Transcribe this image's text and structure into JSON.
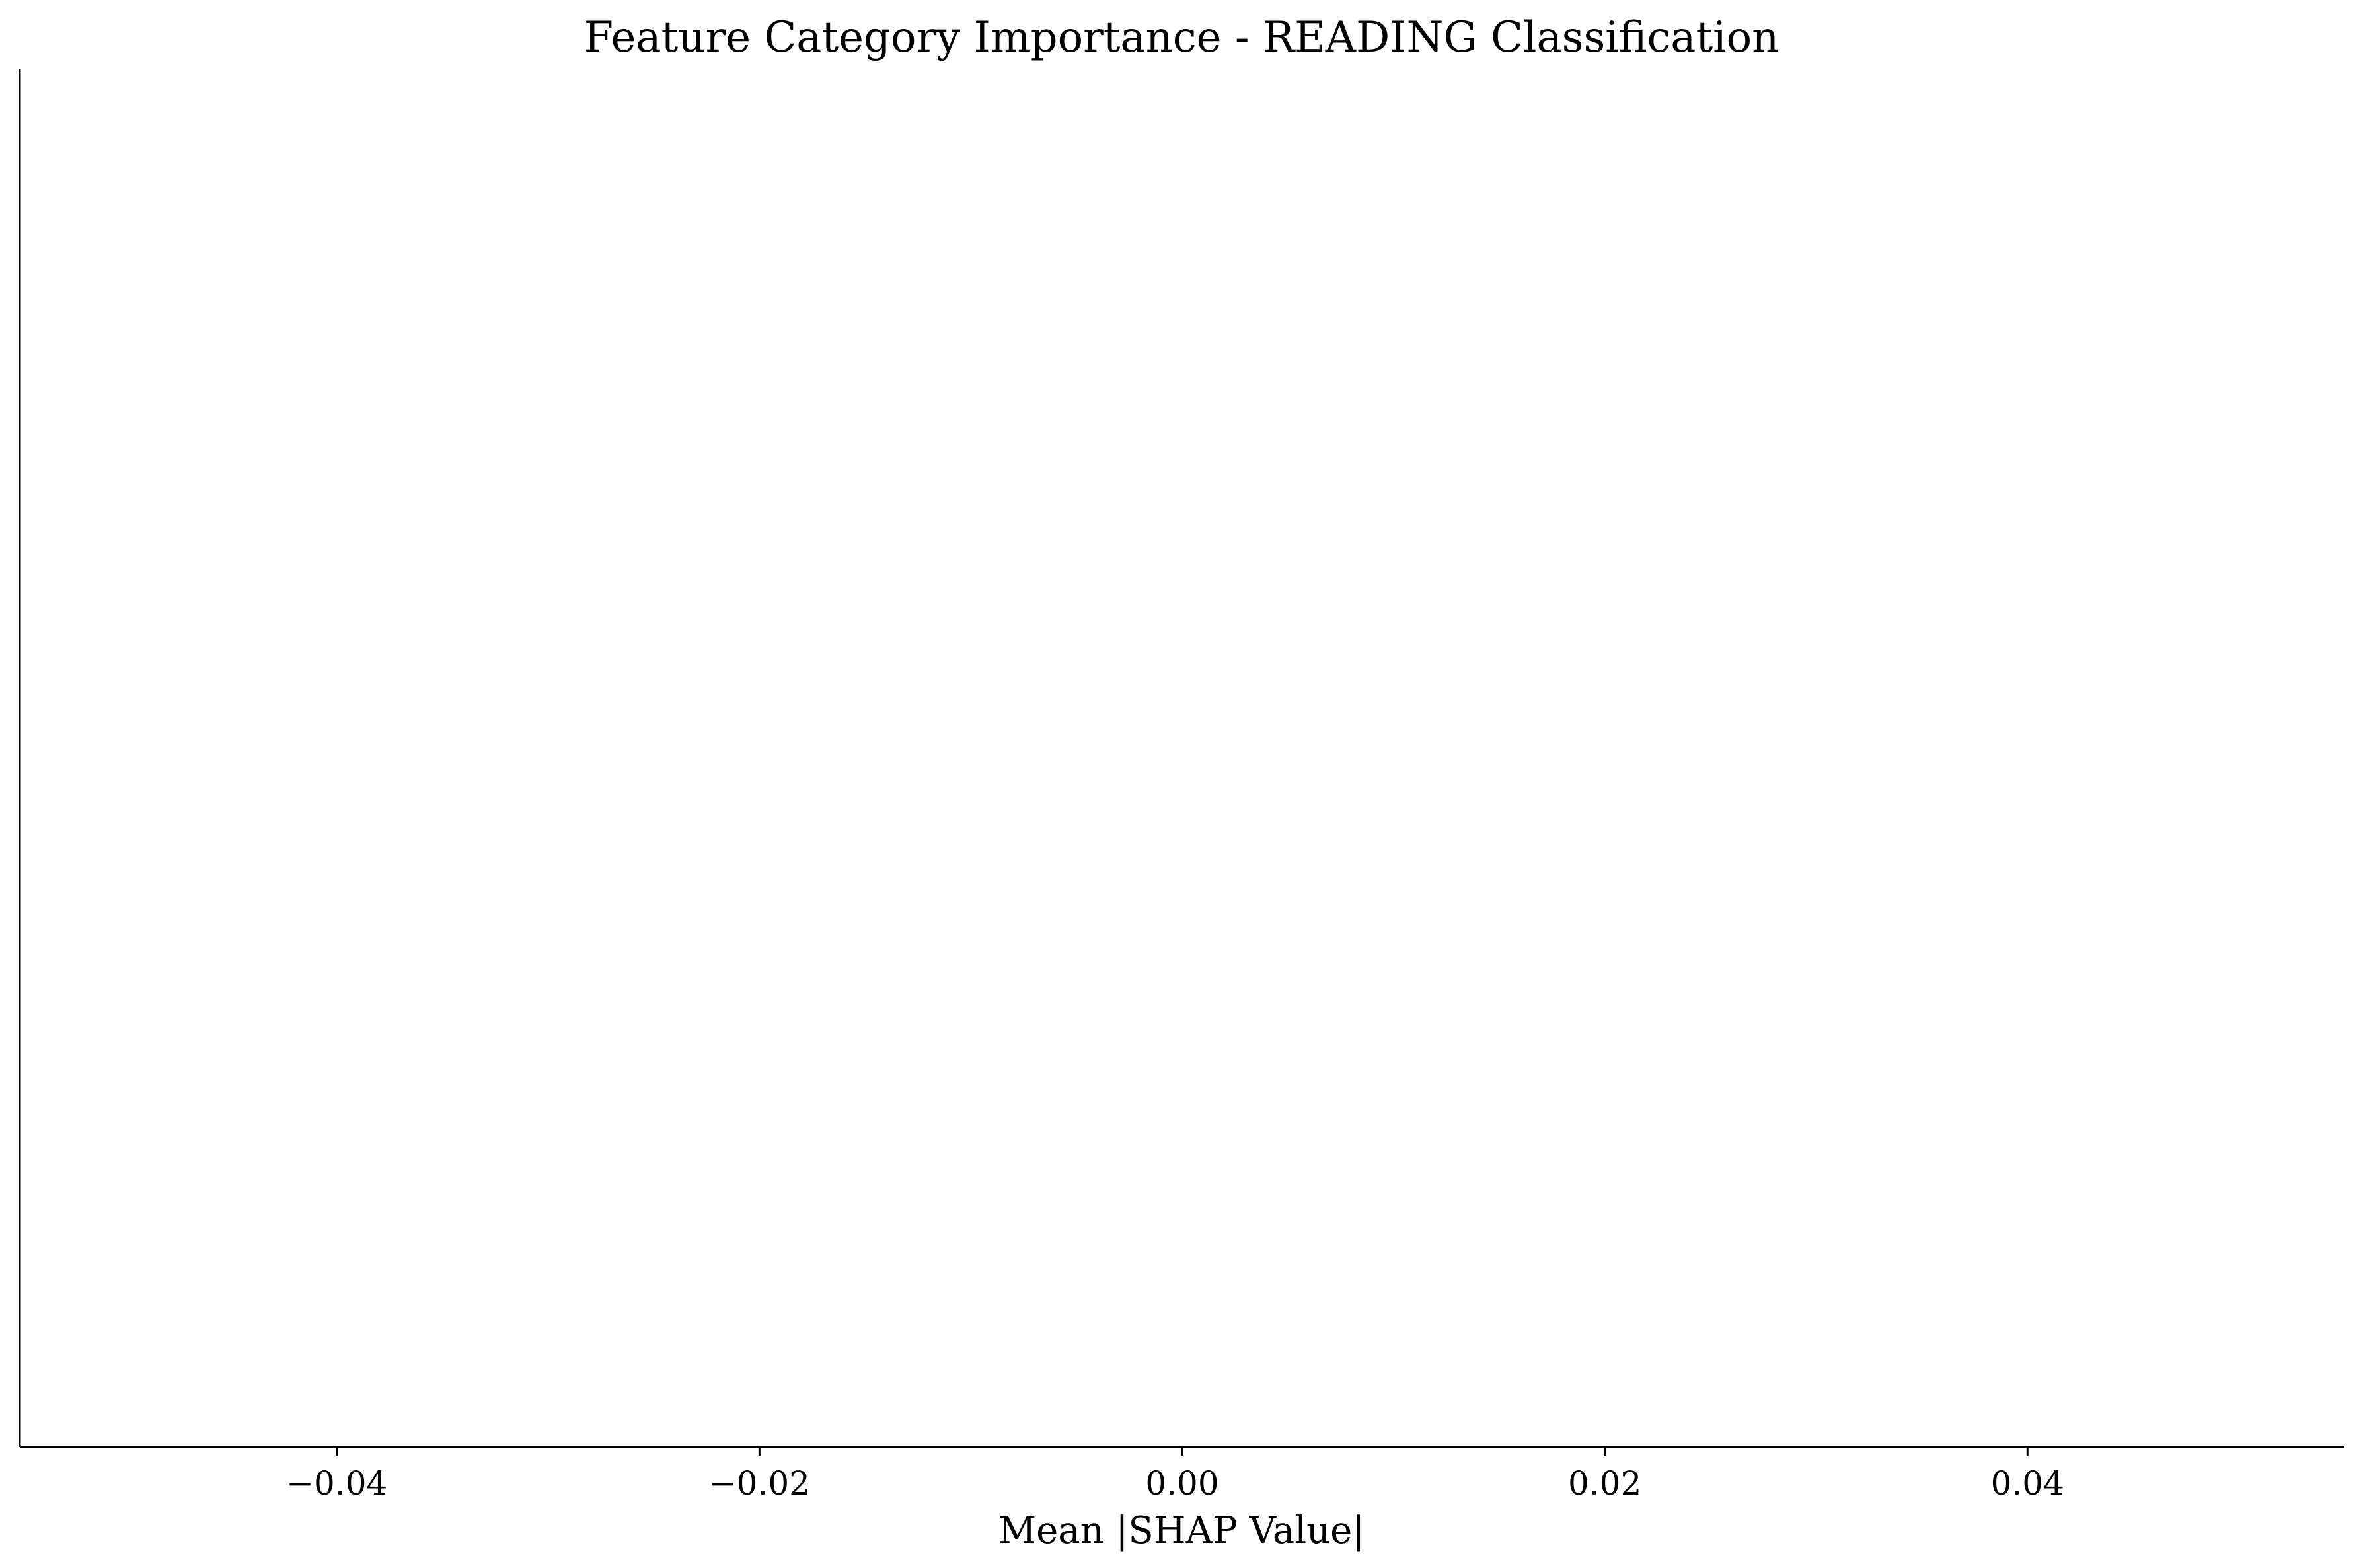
{
  "chart_data": {
    "type": "bar",
    "title": "Feature Category Importance - READING Classification",
    "xlabel": "Mean |SHAP Value|",
    "ylabel": "",
    "categories": [],
    "values": [],
    "xlim": [
      -0.055,
      0.055
    ],
    "x_ticks": [
      -0.04,
      -0.02,
      0.0,
      0.02,
      0.04
    ],
    "x_tick_labels": [
      "−0.04",
      "−0.02",
      "0.00",
      "0.02",
      "0.04"
    ],
    "grid": false,
    "legend": "none",
    "colors": {
      "axis": "#000000",
      "text": "#000000",
      "background": "#ffffff"
    }
  }
}
